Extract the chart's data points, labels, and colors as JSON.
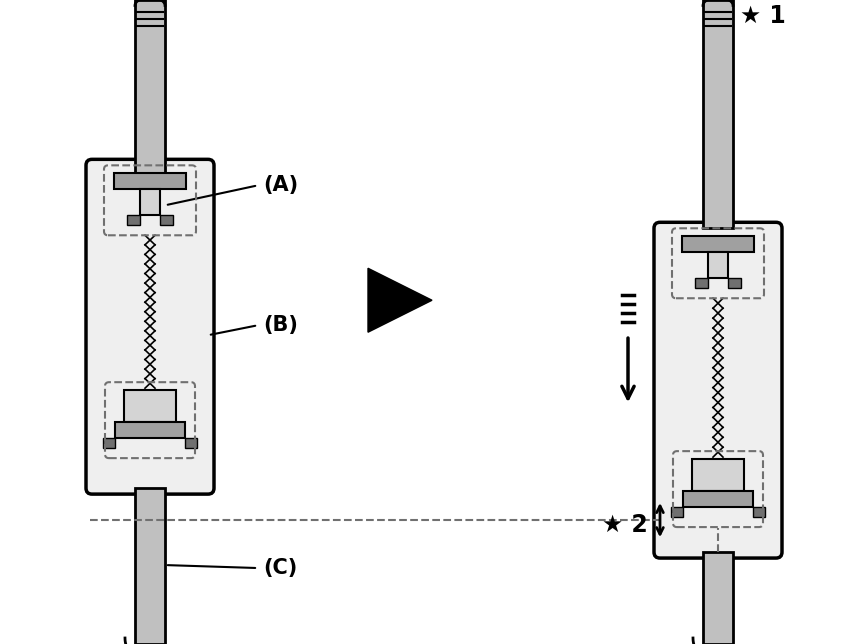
{
  "bg_color": "#ffffff",
  "line_color": "#000000",
  "gray_light": "#d4d4d4",
  "gray_medium": "#a0a0a0",
  "gray_dark": "#707070",
  "gray_cable": "#c0c0c0",
  "label_A": "(A)",
  "label_B": "(B)",
  "label_C": "(C)",
  "label_star1": "★ 1",
  "label_star2": "★ 2"
}
